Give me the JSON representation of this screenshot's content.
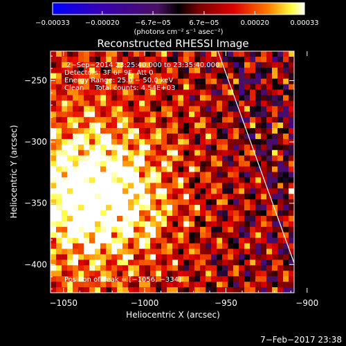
{
  "chart_data": {
    "type": "heatmap",
    "title": "Reconstructed RHESSI Image",
    "xlabel": "Heliocentric X (arcsec)",
    "ylabel": "Heliocentric Y (arcsec)",
    "xlim": [
      -1058,
      -908
    ],
    "ylim": [
      -423,
      -226
    ],
    "xticks": [
      -1050,
      -1000,
      -950,
      -900
    ],
    "yticks": [
      -250,
      -300,
      -350,
      -400
    ],
    "xtick_labels": [
      "−1050",
      "−1000",
      "−950",
      "−900"
    ],
    "ytick_labels": [
      "−250",
      "−300",
      "−350",
      "−400"
    ],
    "colorbar": {
      "min": -0.00033,
      "max": 0.00033,
      "ticks": [
        -0.00033,
        -0.0002,
        -6.7e-05,
        6.7e-05,
        0.0002,
        0.00033
      ],
      "tick_labels": [
        "−0.00033",
        "−0.00020",
        "−6.7e−05",
        "6.7e−05",
        "0.00020",
        "0.00033"
      ],
      "units": "(photons cm⁻² s⁻¹ asec⁻²)"
    },
    "annotations": [
      "2−Sep−2014 23:25:40.000 to 23:35:40.000",
      "Detectors: 3F 6F 9F, Att 0",
      "Energy Range: 25.0 − 50.0 keV",
      "Clean     Total counts: 4.54E+03"
    ],
    "peak_label": "Position of Peak = [−1056, −334]",
    "peak": [
      -1056,
      -334
    ],
    "limb_visible": true,
    "grid": false
  },
  "footer": {
    "date": "7−Feb−2017 23:38"
  }
}
